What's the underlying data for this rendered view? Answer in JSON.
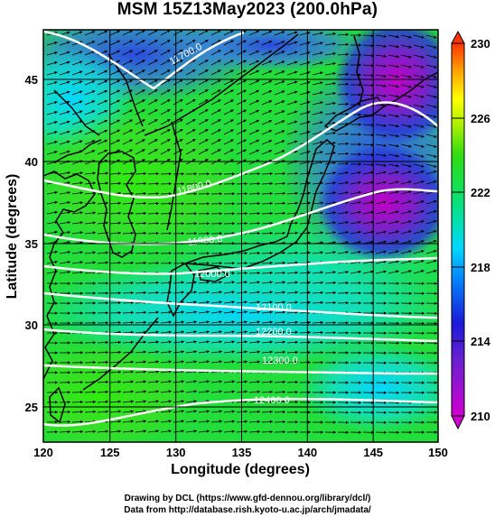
{
  "title": "MSM 15Z13May2023 (200.0hPa)",
  "axes": {
    "xlabel": "Longitude (degrees)",
    "ylabel": "Latitude  (degrees)",
    "xticks": [
      "120",
      "125",
      "130",
      "135",
      "140",
      "145",
      "150"
    ],
    "yticks": [
      "25",
      "30",
      "35",
      "40",
      "45"
    ],
    "xlim": [
      120,
      150
    ],
    "ylim": [
      22.4,
      47.6
    ]
  },
  "colorbar": {
    "labels": [
      "230",
      "226",
      "222",
      "218",
      "214",
      "210"
    ],
    "range": [
      210,
      230
    ],
    "colors": [
      "#cc00cc",
      "#1a1ad8",
      "#00c8ff",
      "#00e0a0",
      "#22dd22",
      "#ffff00",
      "#ff9900",
      "#ff3300"
    ]
  },
  "contours": {
    "labels": [
      "11700.0",
      "11800.0",
      "11900.0",
      "12000.0",
      "12100.0",
      "12200.0",
      "12300.0",
      "12400.0"
    ],
    "color": "#ffffff"
  },
  "credits": {
    "line1": "Drawing by DCL (https://www.gfd-dennou.org/library/dcl/)",
    "line2": "Data from http://database.rish.kyoto-u.ac.jp/arch/jmadata/"
  }
}
